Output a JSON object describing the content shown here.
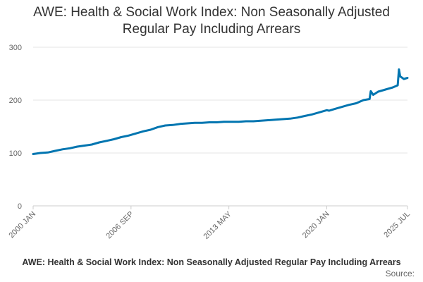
{
  "title_line1": "AWE: Health & Social Work Index: Non Seasonally Adjusted",
  "title_line2": "Regular Pay Including Arrears",
  "caption": "AWE: Health & Social Work Index: Non Seasonally Adjusted Regular Pay Including Arrears",
  "source_label": "Source:",
  "colors": {
    "line": "#0075b0",
    "grid": "#e6e6e6",
    "text": "#333333"
  },
  "chart_data": {
    "type": "line",
    "title": "AWE: Health & Social Work Index: Non Seasonally Adjusted Regular Pay Including Arrears",
    "xlabel": "",
    "ylabel": "",
    "ylim": [
      0,
      300
    ],
    "yticks": [
      0,
      100,
      200,
      300
    ],
    "xlim": [
      "2000 JAN",
      "2025 JUL"
    ],
    "xticks": [
      "2000 JAN",
      "2006 SEP",
      "2013 MAY",
      "2020 JAN",
      "2025 JUL"
    ],
    "grid": true,
    "legend": "none",
    "series": [
      {
        "x": [
          "2000 JAN",
          "2000 JUL",
          "2001 JAN",
          "2001 JUL",
          "2002 JAN",
          "2002 JUL",
          "2003 JAN",
          "2003 JUL",
          "2004 JAN",
          "2004 JUL",
          "2005 JAN",
          "2005 JUL",
          "2006 JAN",
          "2006 JUL",
          "2007 JAN",
          "2007 JUL",
          "2008 JAN",
          "2008 JUL",
          "2009 JAN",
          "2009 JUL",
          "2010 JAN",
          "2010 JUL",
          "2011 JAN",
          "2011 JUL",
          "2012 JAN",
          "2012 JUL",
          "2013 JAN",
          "2013 JUL",
          "2014 JAN",
          "2014 JUL",
          "2015 JAN",
          "2015 JUL",
          "2016 JAN",
          "2016 JUL",
          "2017 JAN",
          "2017 JUL",
          "2018 JAN",
          "2018 JUL",
          "2019 JAN",
          "2019 JUL",
          "2020 JAN",
          "2020 MAR",
          "2020 JUL",
          "2021 JAN",
          "2021 JUL",
          "2022 JAN",
          "2022 MAR",
          "2022 JUL",
          "2022 DEC",
          "2023 JAN",
          "2023 MAR",
          "2023 JUL",
          "2024 JAN",
          "2024 JUL",
          "2024 NOV",
          "2024 DEC",
          "2025 JAN",
          "2025 APR",
          "2025 JUL"
        ],
        "values": [
          98,
          100,
          101,
          104,
          107,
          109,
          112,
          114,
          116,
          120,
          123,
          126,
          130,
          133,
          137,
          141,
          144,
          149,
          152,
          153,
          155,
          156,
          157,
          157,
          158,
          158,
          159,
          159,
          159,
          160,
          160,
          161,
          162,
          163,
          164,
          165,
          167,
          170,
          173,
          177,
          181,
          180,
          183,
          187,
          191,
          194,
          196,
          200,
          202,
          217,
          210,
          216,
          220,
          224,
          228,
          258,
          245,
          240,
          242
        ]
      }
    ]
  }
}
